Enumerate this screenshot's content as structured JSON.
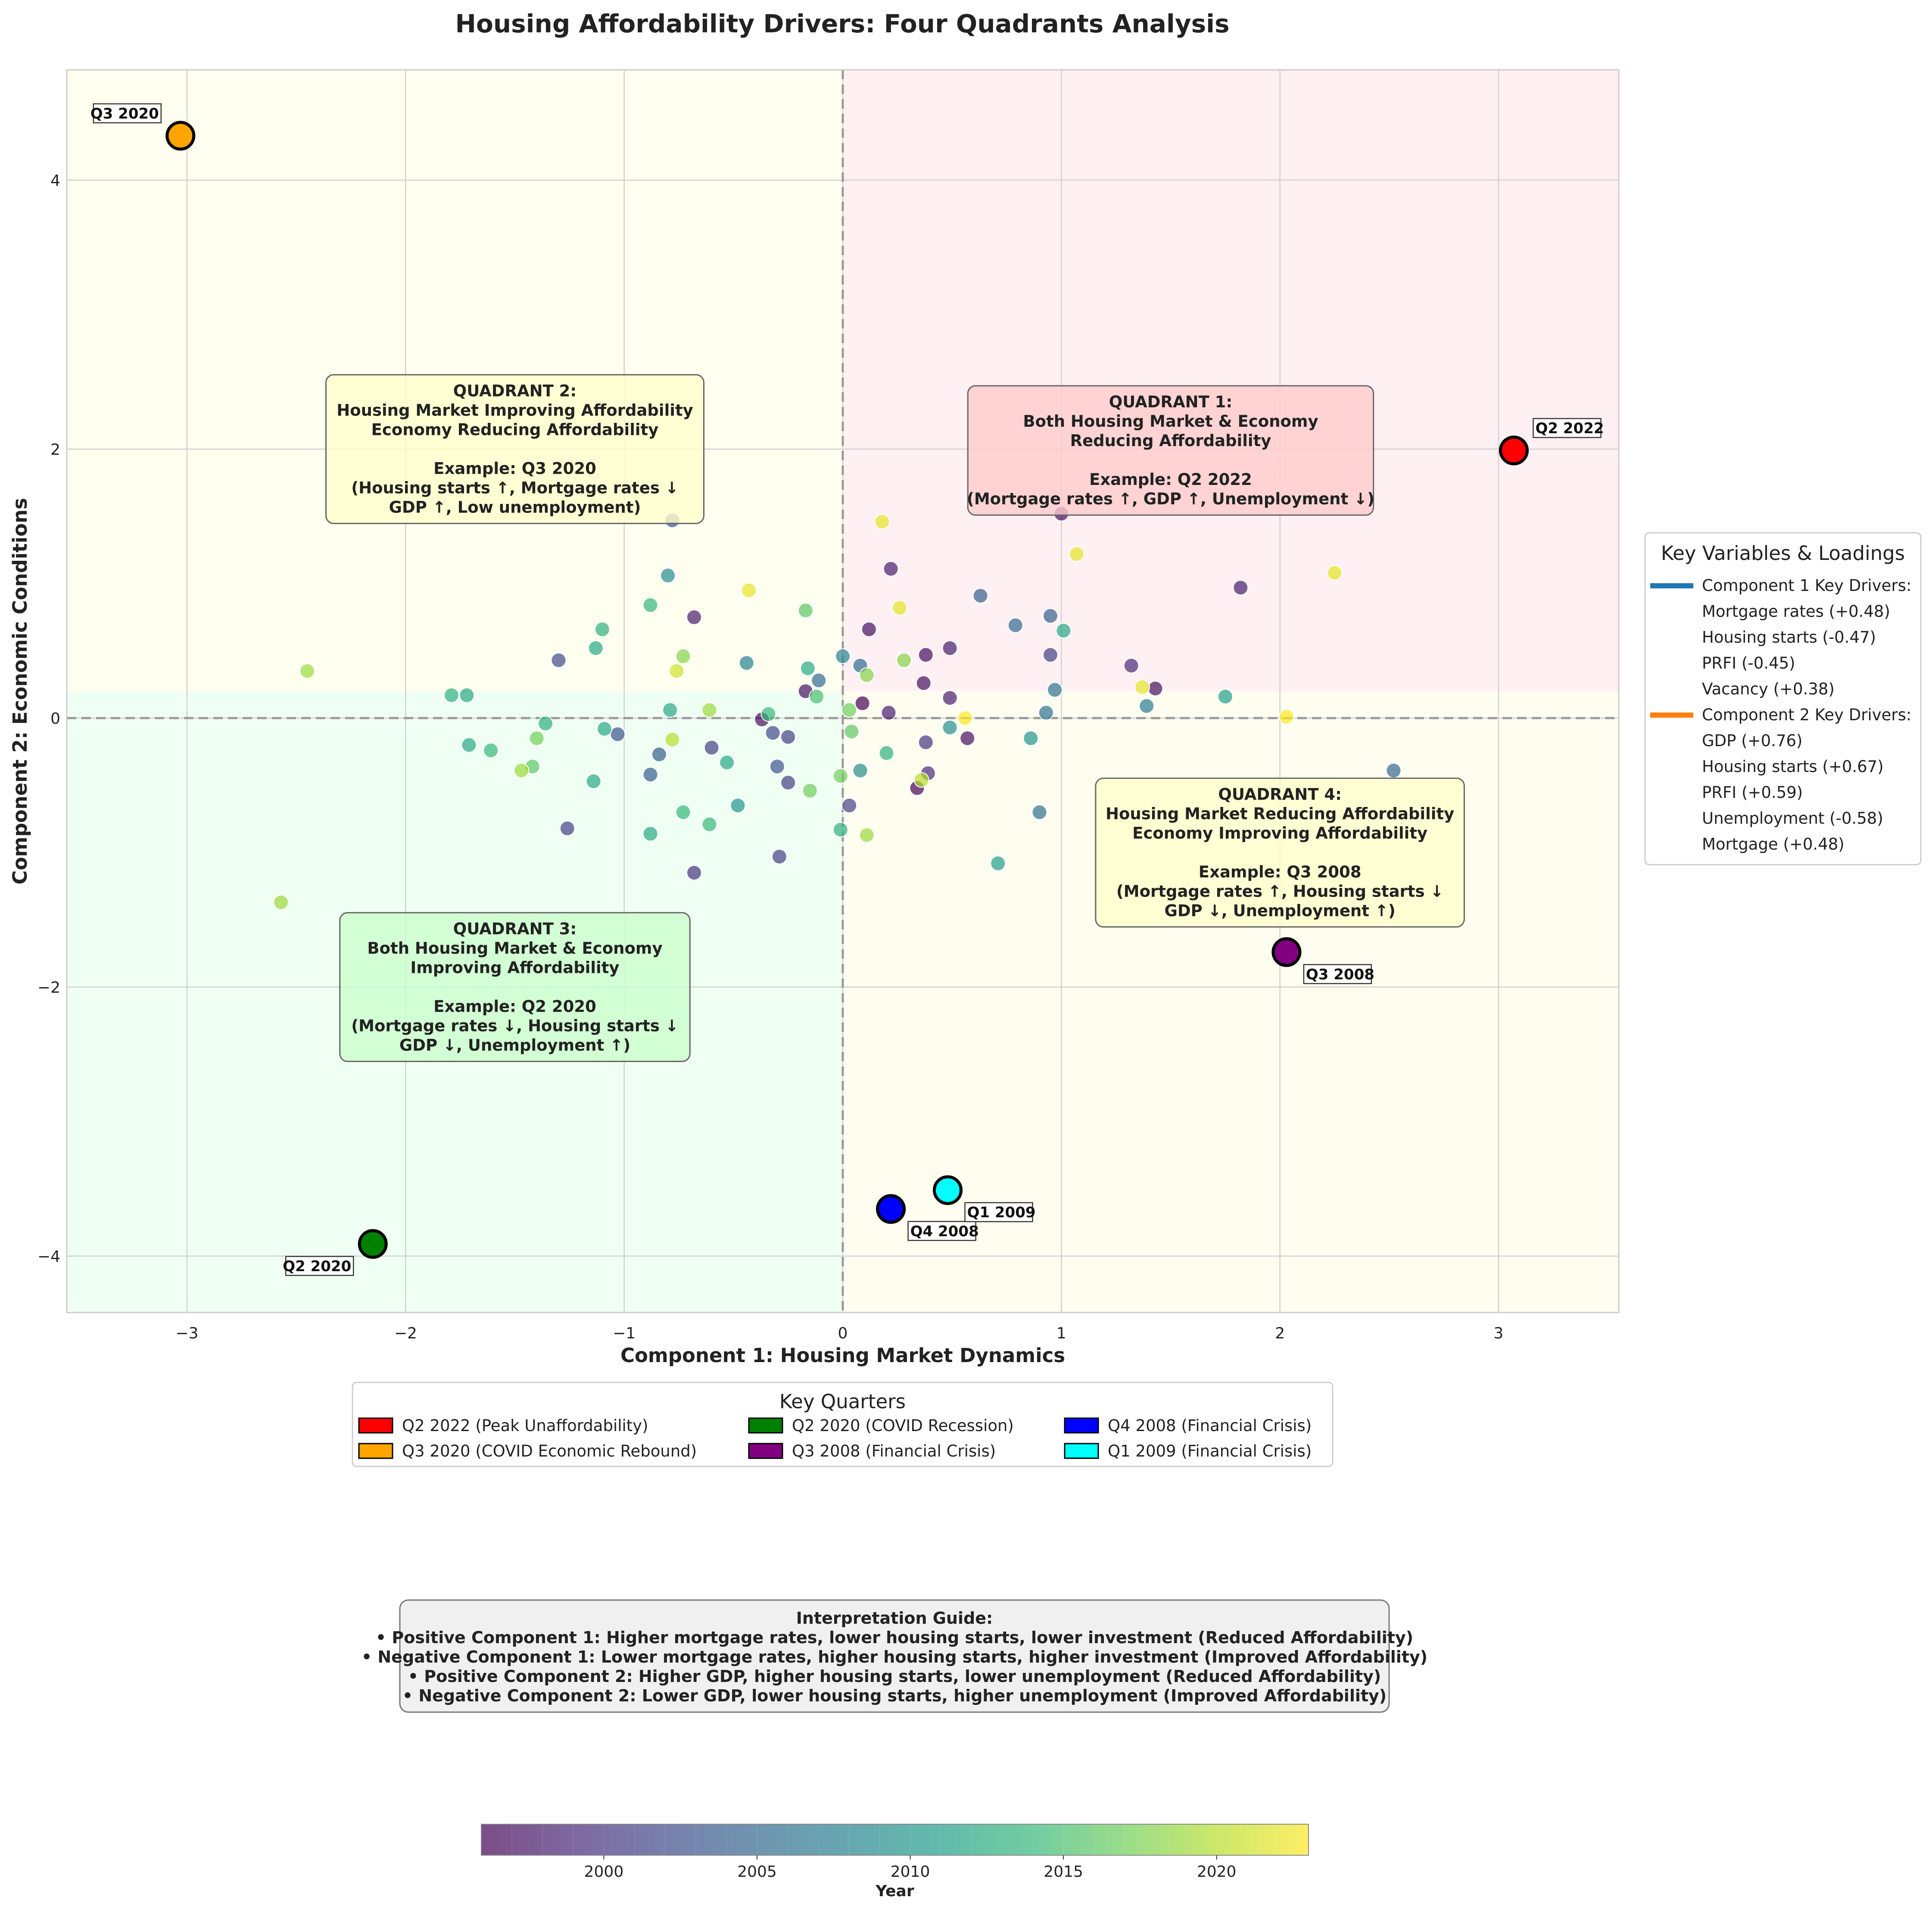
{
  "chart_data": {
    "type": "scatter",
    "title": "Housing Affordability Drivers: Four Quadrants Analysis",
    "xlabel": "Component 1: Housing Market Dynamics",
    "ylabel": "Component 2: Economic Conditions",
    "xlim": [
      -3.55,
      3.55
    ],
    "ylim": [
      -4.42,
      4.82
    ],
    "xticks": [
      -3,
      -2,
      -1,
      0,
      1,
      2,
      3
    ],
    "yticks": [
      -4,
      -2,
      0,
      2,
      4
    ],
    "grid": true,
    "reference_lines": {
      "x": 0,
      "y": 0,
      "style": "dashed"
    },
    "quadrant_shading": [
      {
        "name": "Quadrant 1",
        "color": "#fff0f3"
      },
      {
        "name": "Quadrant 2",
        "color": "#fffff0"
      },
      {
        "name": "Quadrant 3",
        "color": "#f0fff3"
      },
      {
        "name": "Quadrant 4",
        "color": "#fffdf0"
      }
    ],
    "quadrant_boxes": [
      {
        "name": "q1",
        "center": [
          1.5,
          1.99
        ],
        "color": "#ffcccc",
        "lines": [
          "QUADRANT 1:",
          "Both Housing Market & Economy",
          "Reducing Affordability",
          "",
          "Example: Q2 2022",
          "(Mortgage rates ↑, GDP ↑, Unemployment ↓)"
        ]
      },
      {
        "name": "q2",
        "center": [
          -1.5,
          2.0
        ],
        "color": "#ffffcc",
        "lines": [
          "QUADRANT 2:",
          "Housing Market Improving Affordability",
          "Economy Reducing Affordability",
          "",
          "Example: Q3 2020",
          "(Housing starts ↑, Mortgage rates ↓",
          "GDP ↑, Low unemployment)"
        ]
      },
      {
        "name": "q3",
        "center": [
          -1.5,
          -2.0
        ],
        "color": "#ccffcc",
        "lines": [
          "QUADRANT 3:",
          "Both Housing Market & Economy",
          "Improving Affordability",
          "",
          "Example: Q2 2020",
          "(Mortgage rates ↓, Housing starts ↓",
          "GDP ↓, Unemployment ↑)"
        ]
      },
      {
        "name": "q4",
        "center": [
          2.0,
          -1.0
        ],
        "color": "#ffffcc",
        "lines": [
          "QUADRANT 4:",
          "Housing Market Reducing Affordability",
          "Economy Improving Affordability",
          "",
          "Example: Q3 2008",
          "(Mortgage rates ↑, Housing starts ↓",
          "GDP ↓, Unemployment ↑)"
        ]
      }
    ],
    "highlights": [
      {
        "label": "Q2 2022",
        "x": 3.07,
        "y": 1.99,
        "color": "#ff0000",
        "label_pos": "above-right"
      },
      {
        "label": "Q3 2020",
        "x": -3.03,
        "y": 4.33,
        "color": "#ffa500",
        "label_pos": "above-left"
      },
      {
        "label": "Q2 2020",
        "x": -2.15,
        "y": -3.91,
        "color": "#008000",
        "label_pos": "below-left"
      },
      {
        "label": "Q3 2008",
        "x": 2.03,
        "y": -1.74,
        "color": "#800080",
        "label_pos": "below-right"
      },
      {
        "label": "Q4 2008",
        "x": 0.22,
        "y": -3.65,
        "color": "#0000ff",
        "label_pos": "below-right"
      },
      {
        "label": "Q1 2009",
        "x": 0.48,
        "y": -3.51,
        "color": "#00ffff",
        "label_pos": "below-right"
      }
    ],
    "points": [
      {
        "x": 1.0,
        "y": 1.52,
        "year": 1997
      },
      {
        "x": 0.22,
        "y": 1.11,
        "year": 1998
      },
      {
        "x": 1.82,
        "y": 0.97,
        "year": 1998
      },
      {
        "x": 0.12,
        "y": 0.66,
        "year": 1997
      },
      {
        "x": 0.49,
        "y": 0.52,
        "year": 1998
      },
      {
        "x": 0.38,
        "y": 0.47,
        "year": 1997
      },
      {
        "x": 1.32,
        "y": 0.39,
        "year": 1999
      },
      {
        "x": 0.37,
        "y": 0.26,
        "year": 1997
      },
      {
        "x": 1.43,
        "y": 0.22,
        "year": 1997
      },
      {
        "x": -0.17,
        "y": 0.2,
        "year": 1997
      },
      {
        "x": 0.49,
        "y": 0.15,
        "year": 1998
      },
      {
        "x": 0.09,
        "y": 0.11,
        "year": 1996
      },
      {
        "x": 0.21,
        "y": 0.04,
        "year": 1998
      },
      {
        "x": -0.37,
        "y": -0.01,
        "year": 1997
      },
      {
        "x": 0.57,
        "y": -0.15,
        "year": 1997
      },
      {
        "x": 0.38,
        "y": -0.18,
        "year": 2000
      },
      {
        "x": 0.39,
        "y": -0.41,
        "year": 1999
      },
      {
        "x": 0.34,
        "y": -0.52,
        "year": 1996
      },
      {
        "x": 0.03,
        "y": -0.65,
        "year": 2001
      },
      {
        "x": -0.68,
        "y": 0.75,
        "year": 1998
      },
      {
        "x": -0.68,
        "y": -1.15,
        "year": 2000
      },
      {
        "x": -1.26,
        "y": -0.82,
        "year": 2001
      },
      {
        "x": -0.29,
        "y": -1.03,
        "year": 2001
      },
      {
        "x": -0.6,
        "y": -0.22,
        "year": 2001
      },
      {
        "x": -0.25,
        "y": -0.14,
        "year": 2001
      },
      {
        "x": -0.32,
        "y": -0.11,
        "year": 2002
      },
      {
        "x": -0.25,
        "y": -0.48,
        "year": 2001
      },
      {
        "x": -0.3,
        "y": -0.36,
        "year": 2003
      },
      {
        "x": -1.3,
        "y": 0.43,
        "year": 2002
      },
      {
        "x": -1.03,
        "y": -0.12,
        "year": 2003
      },
      {
        "x": -0.84,
        "y": -0.27,
        "year": 2004
      },
      {
        "x": -0.88,
        "y": -0.42,
        "year": 2004
      },
      {
        "x": -0.11,
        "y": 0.28,
        "year": 2005
      },
      {
        "x": 0.08,
        "y": 0.39,
        "year": 2005
      },
      {
        "x": 0.95,
        "y": 0.76,
        "year": 2004
      },
      {
        "x": 0.95,
        "y": 0.47,
        "year": 2001
      },
      {
        "x": 0.63,
        "y": 0.91,
        "year": 2004
      },
      {
        "x": 0.79,
        "y": 0.69,
        "year": 2005
      },
      {
        "x": 0.97,
        "y": 0.21,
        "year": 2006
      },
      {
        "x": 0.93,
        "y": 0.04,
        "year": 2006
      },
      {
        "x": 1.39,
        "y": 0.09,
        "year": 2007
      },
      {
        "x": 0.9,
        "y": -0.7,
        "year": 2006
      },
      {
        "x": 2.52,
        "y": -0.39,
        "year": 2005
      },
      {
        "x": 0.0,
        "y": 0.46,
        "year": 2008
      },
      {
        "x": -0.44,
        "y": 0.41,
        "year": 2008
      },
      {
        "x": -0.8,
        "y": 1.06,
        "year": 2009
      },
      {
        "x": -0.78,
        "y": 1.47,
        "year": 2003
      },
      {
        "x": 0.08,
        "y": -0.39,
        "year": 2009
      },
      {
        "x": 0.49,
        "y": -0.07,
        "year": 2009
      },
      {
        "x": 0.86,
        "y": -0.15,
        "year": 2010
      },
      {
        "x": 0.71,
        "y": -1.08,
        "year": 2011
      },
      {
        "x": 1.01,
        "y": 0.65,
        "year": 2012
      },
      {
        "x": 1.75,
        "y": 0.16,
        "year": 2011
      },
      {
        "x": -0.16,
        "y": 0.37,
        "year": 2012
      },
      {
        "x": -0.48,
        "y": -0.65,
        "year": 2010
      },
      {
        "x": -0.53,
        "y": -0.33,
        "year": 2012
      },
      {
        "x": -1.13,
        "y": 0.52,
        "year": 2012
      },
      {
        "x": -1.1,
        "y": 0.66,
        "year": 2013
      },
      {
        "x": -1.14,
        "y": -0.47,
        "year": 2012
      },
      {
        "x": -1.09,
        "y": -0.08,
        "year": 2012
      },
      {
        "x": -1.36,
        "y": -0.04,
        "year": 2013
      },
      {
        "x": -1.72,
        "y": 0.17,
        "year": 2012
      },
      {
        "x": -1.79,
        "y": 0.17,
        "year": 2013
      },
      {
        "x": -1.71,
        "y": -0.2,
        "year": 2012
      },
      {
        "x": -1.61,
        "y": -0.24,
        "year": 2014
      },
      {
        "x": -0.88,
        "y": -0.86,
        "year": 2012
      },
      {
        "x": -0.88,
        "y": 0.84,
        "year": 2014
      },
      {
        "x": -0.79,
        "y": 0.06,
        "year": 2012
      },
      {
        "x": -0.61,
        "y": -0.79,
        "year": 2014
      },
      {
        "x": -0.73,
        "y": -0.7,
        "year": 2014
      },
      {
        "x": -0.34,
        "y": 0.03,
        "year": 2014
      },
      {
        "x": 0.2,
        "y": -0.26,
        "year": 2013
      },
      {
        "x": -0.01,
        "y": -0.83,
        "year": 2013
      },
      {
        "x": -0.17,
        "y": 0.8,
        "year": 2016
      },
      {
        "x": -0.12,
        "y": 0.16,
        "year": 2015
      },
      {
        "x": 0.04,
        "y": -0.1,
        "year": 2016
      },
      {
        "x": -0.15,
        "y": -0.54,
        "year": 2017
      },
      {
        "x": -0.01,
        "y": -0.43,
        "year": 2017
      },
      {
        "x": -1.42,
        "y": -0.36,
        "year": 2016
      },
      {
        "x": -1.4,
        "y": -0.15,
        "year": 2017
      },
      {
        "x": -1.47,
        "y": -0.39,
        "year": 2019
      },
      {
        "x": -0.73,
        "y": 0.46,
        "year": 2018
      },
      {
        "x": 0.03,
        "y": 0.06,
        "year": 2017
      },
      {
        "x": 0.11,
        "y": 0.32,
        "year": 2018
      },
      {
        "x": 0.28,
        "y": 0.43,
        "year": 2018
      },
      {
        "x": 0.11,
        "y": -0.87,
        "year": 2019
      },
      {
        "x": -0.61,
        "y": 0.06,
        "year": 2019
      },
      {
        "x": -0.78,
        "y": -0.16,
        "year": 2020
      },
      {
        "x": -0.76,
        "y": 0.35,
        "year": 2021
      },
      {
        "x": -2.45,
        "y": 0.35,
        "year": 2019
      },
      {
        "x": -2.57,
        "y": -1.37,
        "year": 2019
      },
      {
        "x": 0.36,
        "y": -0.46,
        "year": 2020
      },
      {
        "x": 0.18,
        "y": 1.46,
        "year": 2022
      },
      {
        "x": 0.26,
        "y": 0.82,
        "year": 2022
      },
      {
        "x": 1.07,
        "y": 1.22,
        "year": 2022
      },
      {
        "x": 2.25,
        "y": 1.08,
        "year": 2022
      },
      {
        "x": -0.43,
        "y": 0.95,
        "year": 2022
      },
      {
        "x": 1.37,
        "y": 0.23,
        "year": 2022
      },
      {
        "x": 0.56,
        "y": 0.0,
        "year": 2023
      },
      {
        "x": 2.03,
        "y": 0.01,
        "year": 2023
      }
    ],
    "legend_key_quarters": {
      "title": "Key Quarters",
      "entries": [
        {
          "label": "Q2 2022 (Peak Unaffordability)",
          "color": "#ff0000"
        },
        {
          "label": "Q2 2020 (COVID Recession)",
          "color": "#008000"
        },
        {
          "label": "Q4 2008 (Financial Crisis)",
          "color": "#0000ff"
        },
        {
          "label": "Q3 2020 (COVID Economic Rebound)",
          "color": "#ffa500"
        },
        {
          "label": "Q3 2008 (Financial Crisis)",
          "color": "#800080"
        },
        {
          "label": "Q1 2009 (Financial Crisis)",
          "color": "#00ffff"
        }
      ]
    },
    "legend_loadings": {
      "title": "Key Variables & Loadings",
      "entries": [
        {
          "label": "Component 1 Key Drivers:",
          "line_color": "#1f77b4"
        },
        {
          "label": "Mortgage rates (+0.48)",
          "line_color": ""
        },
        {
          "label": "Housing starts (-0.47)",
          "line_color": ""
        },
        {
          "label": "PRFI (-0.45)",
          "line_color": ""
        },
        {
          "label": "Vacancy (+0.38)",
          "line_color": ""
        },
        {
          "label": "Component 2 Key Drivers:",
          "line_color": "#ff7f0e"
        },
        {
          "label": "GDP (+0.76)",
          "line_color": ""
        },
        {
          "label": "Housing starts (+0.67)",
          "line_color": ""
        },
        {
          "label": "PRFI (+0.59)",
          "line_color": ""
        },
        {
          "label": "Unemployment (-0.58)",
          "line_color": ""
        },
        {
          "label": "Mortgage (+0.48)",
          "line_color": ""
        }
      ]
    },
    "interpretation_guide": [
      "Interpretation Guide:",
      "• Positive Component 1: Higher mortgage rates, lower housing starts, lower investment (Reduced Affordability)",
      "• Negative Component 1: Lower mortgage rates, higher housing starts, higher investment (Improved Affordability)",
      "• Positive Component 2: Higher GDP, higher housing starts, lower unemployment (Reduced Affordability)",
      "• Negative Component 2: Lower GDP, lower housing starts, higher unemployment (Improved Affordability)"
    ],
    "colorbar": {
      "label": "Year",
      "colormap": "viridis",
      "range": [
        1996,
        2023
      ],
      "ticks": [
        2000,
        2005,
        2010,
        2015,
        2020
      ]
    }
  }
}
